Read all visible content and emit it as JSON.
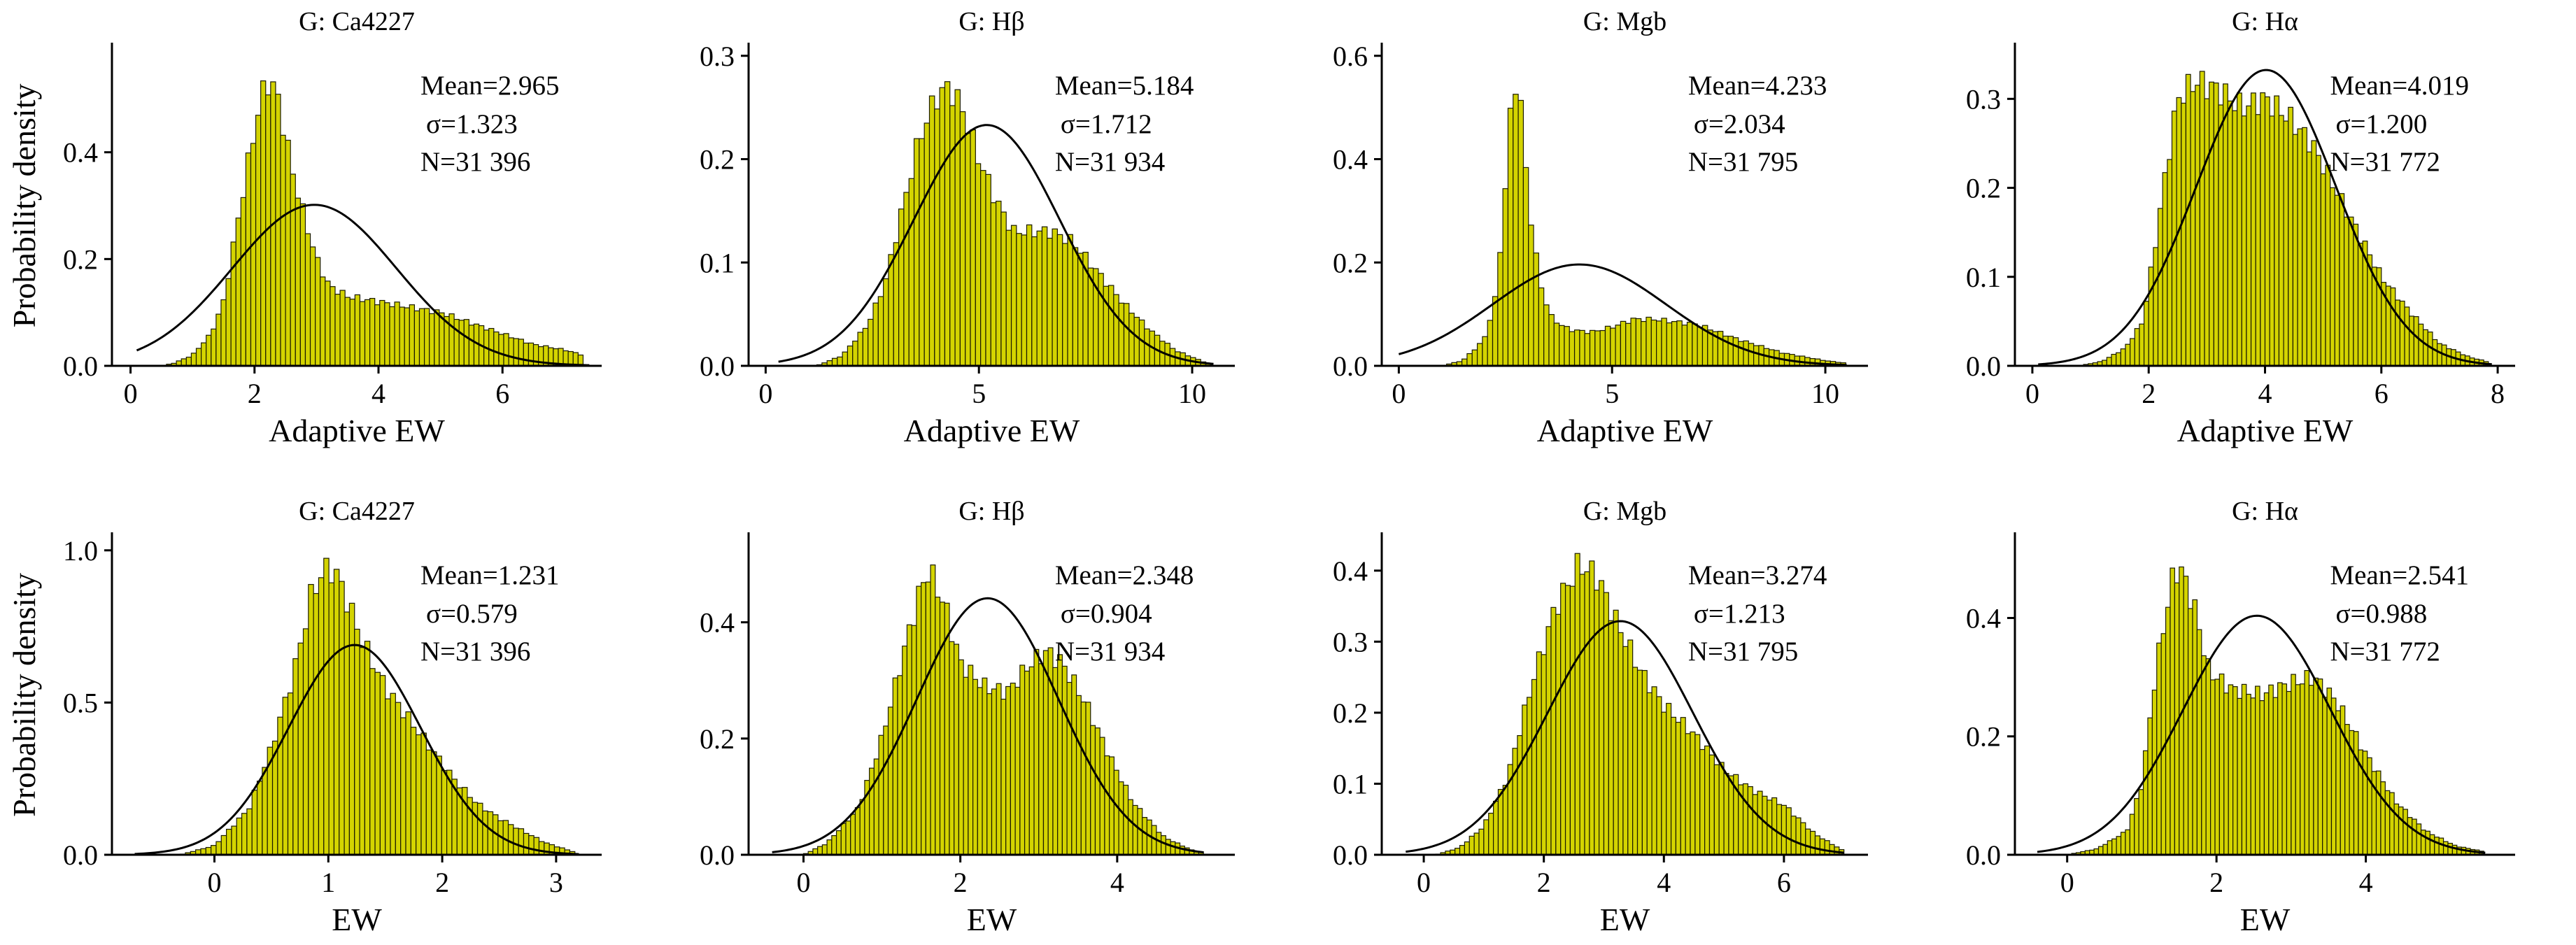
{
  "figure": {
    "ylabel": "Probability density",
    "bar_color": "#d4d400",
    "bar_edge_color": "#1a1a00",
    "fit_line_color": "#000000"
  },
  "chart_data": [
    {
      "type": "bar",
      "row": 0,
      "col": 0,
      "title": "G: Ca4227",
      "xlabel": "Adaptive EW",
      "ylabel": "Probability density",
      "xlim": [
        -0.3,
        7.6
      ],
      "ylim": [
        0,
        0.6
      ],
      "xticks": [
        0,
        2,
        4,
        6
      ],
      "yticks": [
        0,
        0.2,
        0.4
      ],
      "stats": {
        "mean": "Mean=2.965",
        "sigma": "σ=1.323",
        "n": "N=31 396"
      },
      "fit": {
        "mean": 2.965,
        "sd": 1.323,
        "range": [
          0.1,
          7.4
        ]
      },
      "hist": {
        "bin_width": 0.08,
        "range": [
          0.5,
          7.3
        ],
        "anchors": [
          [
            0.5,
            0.0
          ],
          [
            0.7,
            0.005
          ],
          [
            1.0,
            0.02
          ],
          [
            1.3,
            0.06
          ],
          [
            1.5,
            0.12
          ],
          [
            1.7,
            0.25
          ],
          [
            1.9,
            0.38
          ],
          [
            2.1,
            0.5
          ],
          [
            2.25,
            0.54
          ],
          [
            2.4,
            0.49
          ],
          [
            2.6,
            0.37
          ],
          [
            2.8,
            0.28
          ],
          [
            3.0,
            0.2
          ],
          [
            3.2,
            0.15
          ],
          [
            3.5,
            0.13
          ],
          [
            4.0,
            0.12
          ],
          [
            4.5,
            0.11
          ],
          [
            5.0,
            0.1
          ],
          [
            5.5,
            0.08
          ],
          [
            6.0,
            0.06
          ],
          [
            6.5,
            0.04
          ],
          [
            7.0,
            0.03
          ],
          [
            7.3,
            0.02
          ]
        ]
      }
    },
    {
      "type": "bar",
      "row": 0,
      "col": 1,
      "title": "G: Hβ",
      "xlabel": "Adaptive EW",
      "ylabel": "",
      "xlim": [
        -0.4,
        11.0
      ],
      "ylim": [
        0,
        0.31
      ],
      "xticks": [
        0,
        5,
        10
      ],
      "yticks": [
        0,
        0.1,
        0.2,
        0.3
      ],
      "stats": {
        "mean": "Mean=5.184",
        "sigma": "σ=1.712",
        "n": "N=31 934"
      },
      "fit": {
        "mean": 5.184,
        "sd": 1.712,
        "range": [
          0.3,
          10.5
        ]
      },
      "hist": {
        "bin_width": 0.12,
        "range": [
          1.2,
          10.5
        ],
        "anchors": [
          [
            1.2,
            0.0
          ],
          [
            1.8,
            0.01
          ],
          [
            2.4,
            0.04
          ],
          [
            2.8,
            0.08
          ],
          [
            3.2,
            0.15
          ],
          [
            3.6,
            0.22
          ],
          [
            4.0,
            0.26
          ],
          [
            4.3,
            0.27
          ],
          [
            4.6,
            0.25
          ],
          [
            5.0,
            0.2
          ],
          [
            5.4,
            0.16
          ],
          [
            5.8,
            0.13
          ],
          [
            6.2,
            0.13
          ],
          [
            6.7,
            0.13
          ],
          [
            7.2,
            0.12
          ],
          [
            7.8,
            0.09
          ],
          [
            8.4,
            0.06
          ],
          [
            9.0,
            0.035
          ],
          [
            9.6,
            0.015
          ],
          [
            10.2,
            0.005
          ],
          [
            10.5,
            0.0
          ]
        ]
      }
    },
    {
      "type": "bar",
      "row": 0,
      "col": 2,
      "title": "G: Mgb",
      "xlabel": "Adaptive EW",
      "ylabel": "",
      "xlim": [
        -0.4,
        11.0
      ],
      "ylim": [
        0,
        0.62
      ],
      "xticks": [
        0,
        5,
        10
      ],
      "yticks": [
        0,
        0.2,
        0.4,
        0.6
      ],
      "stats": {
        "mean": "Mean=4.233",
        "sigma": "σ=2.034",
        "n": "N=31 795"
      },
      "fit": {
        "mean": 4.233,
        "sd": 2.034,
        "range": [
          0.0,
          10.5
        ]
      },
      "hist": {
        "bin_width": 0.12,
        "range": [
          1.0,
          10.5
        ],
        "anchors": [
          [
            1.0,
            0.0
          ],
          [
            1.5,
            0.01
          ],
          [
            2.0,
            0.05
          ],
          [
            2.3,
            0.14
          ],
          [
            2.5,
            0.35
          ],
          [
            2.7,
            0.56
          ],
          [
            2.85,
            0.52
          ],
          [
            3.0,
            0.35
          ],
          [
            3.3,
            0.16
          ],
          [
            3.6,
            0.09
          ],
          [
            4.0,
            0.07
          ],
          [
            4.5,
            0.065
          ],
          [
            5.0,
            0.075
          ],
          [
            5.5,
            0.09
          ],
          [
            6.0,
            0.09
          ],
          [
            7.0,
            0.08
          ],
          [
            8.0,
            0.05
          ],
          [
            9.0,
            0.025
          ],
          [
            10.0,
            0.01
          ],
          [
            10.5,
            0.005
          ]
        ]
      }
    },
    {
      "type": "bar",
      "row": 0,
      "col": 3,
      "title": "G: Hα",
      "xlabel": "Adaptive EW",
      "ylabel": "",
      "xlim": [
        -0.3,
        8.3
      ],
      "ylim": [
        0,
        0.36
      ],
      "xticks": [
        0,
        2,
        4,
        6,
        8
      ],
      "yticks": [
        0,
        0.1,
        0.2,
        0.3
      ],
      "stats": {
        "mean": "Mean=4.019",
        "sigma": "σ=1.200",
        "n": "N=31 772"
      },
      "fit": {
        "mean": 4.019,
        "sd": 1.2,
        "range": [
          0.1,
          7.9
        ]
      },
      "hist": {
        "bin_width": 0.08,
        "range": [
          0.8,
          7.8
        ],
        "anchors": [
          [
            0.8,
            0.0
          ],
          [
            1.2,
            0.005
          ],
          [
            1.6,
            0.02
          ],
          [
            1.9,
            0.05
          ],
          [
            2.1,
            0.13
          ],
          [
            2.3,
            0.22
          ],
          [
            2.5,
            0.3
          ],
          [
            2.8,
            0.32
          ],
          [
            3.2,
            0.31
          ],
          [
            3.6,
            0.29
          ],
          [
            4.0,
            0.3
          ],
          [
            4.4,
            0.28
          ],
          [
            4.8,
            0.25
          ],
          [
            5.2,
            0.2
          ],
          [
            5.6,
            0.15
          ],
          [
            6.0,
            0.1
          ],
          [
            6.5,
            0.06
          ],
          [
            7.0,
            0.025
          ],
          [
            7.5,
            0.01
          ],
          [
            7.8,
            0.005
          ]
        ]
      }
    },
    {
      "type": "bar",
      "row": 1,
      "col": 0,
      "title": "G: Ca4227",
      "xlabel": "EW",
      "ylabel": "Probability density",
      "xlim": [
        -0.9,
        3.4
      ],
      "ylim": [
        0,
        1.05
      ],
      "xticks": [
        0,
        1,
        2,
        3
      ],
      "yticks": [
        0,
        0.5,
        1.0
      ],
      "stats": {
        "mean": "Mean=1.231",
        "sigma": "σ=0.579",
        "n": "N=31 396"
      },
      "fit": {
        "mean": 1.231,
        "sd": 0.579,
        "range": [
          -0.7,
          3.2
        ]
      },
      "hist": {
        "bin_width": 0.045,
        "range": [
          -0.3,
          3.15
        ],
        "anchors": [
          [
            -0.3,
            0.0
          ],
          [
            0.0,
            0.03
          ],
          [
            0.3,
            0.15
          ],
          [
            0.5,
            0.35
          ],
          [
            0.7,
            0.6
          ],
          [
            0.85,
            0.85
          ],
          [
            0.95,
            0.93
          ],
          [
            1.05,
            0.94
          ],
          [
            1.15,
            0.85
          ],
          [
            1.3,
            0.7
          ],
          [
            1.5,
            0.55
          ],
          [
            1.7,
            0.45
          ],
          [
            1.9,
            0.35
          ],
          [
            2.1,
            0.25
          ],
          [
            2.3,
            0.17
          ],
          [
            2.5,
            0.12
          ],
          [
            2.7,
            0.08
          ],
          [
            2.9,
            0.04
          ],
          [
            3.15,
            0.01
          ]
        ]
      }
    },
    {
      "type": "bar",
      "row": 1,
      "col": 1,
      "title": "G: Hβ",
      "xlabel": "EW",
      "ylabel": "",
      "xlim": [
        -0.7,
        5.5
      ],
      "ylim": [
        0,
        0.55
      ],
      "xticks": [
        0,
        2,
        4
      ],
      "yticks": [
        0,
        0.2,
        0.4
      ],
      "stats": {
        "mean": "Mean=2.348",
        "sigma": "σ=0.904",
        "n": "N=31 934"
      },
      "fit": {
        "mean": 2.348,
        "sd": 0.904,
        "range": [
          -0.4,
          5.1
        ]
      },
      "hist": {
        "bin_width": 0.06,
        "range": [
          0.0,
          5.1
        ],
        "anchors": [
          [
            0.0,
            0.0
          ],
          [
            0.3,
            0.02
          ],
          [
            0.7,
            0.08
          ],
          [
            1.0,
            0.2
          ],
          [
            1.3,
            0.36
          ],
          [
            1.5,
            0.46
          ],
          [
            1.6,
            0.49
          ],
          [
            1.8,
            0.43
          ],
          [
            2.0,
            0.33
          ],
          [
            2.3,
            0.29
          ],
          [
            2.6,
            0.28
          ],
          [
            2.9,
            0.33
          ],
          [
            3.1,
            0.35
          ],
          [
            3.3,
            0.33
          ],
          [
            3.6,
            0.26
          ],
          [
            3.9,
            0.17
          ],
          [
            4.2,
            0.09
          ],
          [
            4.6,
            0.03
          ],
          [
            5.0,
            0.005
          ]
        ]
      }
    },
    {
      "type": "bar",
      "row": 1,
      "col": 2,
      "title": "G: Mgb",
      "xlabel": "EW",
      "ylabel": "",
      "xlim": [
        -0.7,
        7.4
      ],
      "ylim": [
        0,
        0.45
      ],
      "xticks": [
        0,
        2,
        4,
        6
      ],
      "yticks": [
        0,
        0.1,
        0.2,
        0.3,
        0.4
      ],
      "stats": {
        "mean": "Mean=3.274",
        "sigma": "σ=1.213",
        "n": "N=31 795"
      },
      "fit": {
        "mean": 3.274,
        "sd": 1.213,
        "range": [
          -0.3,
          7.0
        ]
      },
      "hist": {
        "bin_width": 0.08,
        "range": [
          0.2,
          7.0
        ],
        "anchors": [
          [
            0.2,
            0.0
          ],
          [
            0.6,
            0.01
          ],
          [
            1.0,
            0.04
          ],
          [
            1.4,
            0.11
          ],
          [
            1.8,
            0.24
          ],
          [
            2.2,
            0.35
          ],
          [
            2.6,
            0.41
          ],
          [
            2.9,
            0.39
          ],
          [
            3.2,
            0.33
          ],
          [
            3.6,
            0.26
          ],
          [
            4.0,
            0.21
          ],
          [
            4.5,
            0.17
          ],
          [
            5.0,
            0.12
          ],
          [
            5.5,
            0.09
          ],
          [
            6.0,
            0.07
          ],
          [
            6.5,
            0.03
          ],
          [
            7.0,
            0.005
          ]
        ]
      }
    },
    {
      "type": "bar",
      "row": 1,
      "col": 3,
      "title": "G: Hα",
      "xlabel": "EW",
      "ylabel": "",
      "xlim": [
        -0.7,
        6.0
      ],
      "ylim": [
        0,
        0.54
      ],
      "xticks": [
        0,
        2,
        4
      ],
      "yticks": [
        0,
        0.2,
        0.4
      ],
      "stats": {
        "mean": "Mean=2.541",
        "sigma": "σ=0.988",
        "n": "N=31 772"
      },
      "fit": {
        "mean": 2.541,
        "sd": 0.988,
        "range": [
          -0.4,
          5.6
        ]
      },
      "hist": {
        "bin_width": 0.06,
        "range": [
          0.0,
          5.6
        ],
        "anchors": [
          [
            0.0,
            0.0
          ],
          [
            0.4,
            0.01
          ],
          [
            0.8,
            0.04
          ],
          [
            1.0,
            0.12
          ],
          [
            1.2,
            0.32
          ],
          [
            1.4,
            0.46
          ],
          [
            1.5,
            0.49
          ],
          [
            1.7,
            0.42
          ],
          [
            1.9,
            0.31
          ],
          [
            2.2,
            0.28
          ],
          [
            2.6,
            0.27
          ],
          [
            3.0,
            0.29
          ],
          [
            3.3,
            0.3
          ],
          [
            3.6,
            0.26
          ],
          [
            4.0,
            0.17
          ],
          [
            4.4,
            0.09
          ],
          [
            4.8,
            0.04
          ],
          [
            5.2,
            0.015
          ],
          [
            5.6,
            0.005
          ]
        ]
      }
    }
  ]
}
